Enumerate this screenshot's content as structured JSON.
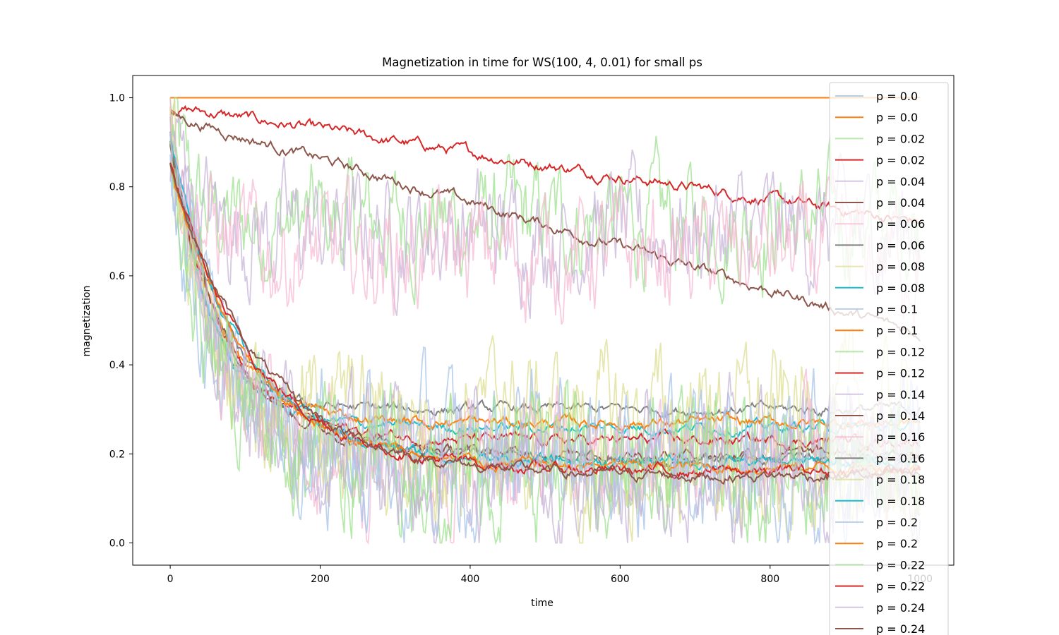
{
  "chart_data": {
    "type": "line",
    "title": "Magnetization in time for WS(100, 4, 0.01) for small ps",
    "xlabel": "time",
    "ylabel": "magnetization",
    "xlim": [
      -50,
      1045
    ],
    "ylim": [
      -0.05,
      1.05
    ],
    "xticks": [
      0,
      200,
      400,
      600,
      800,
      1000
    ],
    "yticks": [
      0.0,
      0.2,
      0.4,
      0.6,
      0.8,
      1.0
    ],
    "xtick_labels": [
      "0",
      "200",
      "400",
      "600",
      "800",
      "1000"
    ],
    "ytick_labels": [
      "0.0",
      "0.2",
      "0.4",
      "0.6",
      "0.8",
      "1.0"
    ],
    "legend_position": "upper-right (overflowing bottom)",
    "series": [
      {
        "name": "p = 0.0",
        "color": "#aec7e8",
        "alpha": 0.9,
        "kind": "single",
        "approx": {
          "start": 1.0,
          "end": 1.0
        }
      },
      {
        "name": "p = 0.0",
        "color": "#ff7f0e",
        "alpha": 1.0,
        "kind": "mean",
        "approx": {
          "start": 1.0,
          "end": 1.0
        }
      },
      {
        "name": "p = 0.02",
        "color": "#98df8a",
        "alpha": 0.7,
        "kind": "single",
        "approx": {
          "start": 1.0,
          "end": 0.72
        }
      },
      {
        "name": "p = 0.02",
        "color": "#d62728",
        "alpha": 1.0,
        "kind": "mean",
        "approx": {
          "start": 0.98,
          "end": 0.72
        }
      },
      {
        "name": "p = 0.04",
        "color": "#c5b0d5",
        "alpha": 0.7,
        "kind": "single",
        "approx": {
          "start": 0.97,
          "end": 0.7
        }
      },
      {
        "name": "p = 0.04",
        "color": "#8c564b",
        "alpha": 1.0,
        "kind": "mean",
        "approx": {
          "start": 0.96,
          "end": 0.47
        }
      },
      {
        "name": "p = 0.06",
        "color": "#f7b6d2",
        "alpha": 0.7,
        "kind": "single",
        "approx": {
          "start": 0.95,
          "end": 0.65
        }
      },
      {
        "name": "p = 0.06",
        "color": "#7f7f7f",
        "alpha": 1.0,
        "kind": "mean",
        "approx": {
          "start": 0.93,
          "end": 0.3
        }
      },
      {
        "name": "p = 0.08",
        "color": "#dbdb8d",
        "alpha": 0.7,
        "kind": "single",
        "approx": {
          "start": 0.93,
          "end": 0.3
        }
      },
      {
        "name": "p = 0.08",
        "color": "#17becf",
        "alpha": 1.0,
        "kind": "mean",
        "approx": {
          "start": 0.92,
          "end": 0.26
        }
      },
      {
        "name": "p = 0.1",
        "color": "#aec7e8",
        "alpha": 0.8,
        "kind": "single",
        "approx": {
          "start": 0.9,
          "end": 0.25
        }
      },
      {
        "name": "p = 0.1",
        "color": "#ff7f0e",
        "alpha": 1.0,
        "kind": "mean",
        "approx": {
          "start": 0.9,
          "end": 0.27
        }
      },
      {
        "name": "p = 0.12",
        "color": "#98df8a",
        "alpha": 0.7,
        "kind": "single",
        "approx": {
          "start": 0.9,
          "end": 0.2
        }
      },
      {
        "name": "p = 0.12",
        "color": "#d62728",
        "alpha": 1.0,
        "kind": "mean",
        "approx": {
          "start": 0.9,
          "end": 0.23
        }
      },
      {
        "name": "p = 0.14",
        "color": "#c5b0d5",
        "alpha": 0.7,
        "kind": "single",
        "approx": {
          "start": 0.9,
          "end": 0.2
        }
      },
      {
        "name": "p = 0.14",
        "color": "#8c564b",
        "alpha": 1.0,
        "kind": "mean",
        "approx": {
          "start": 0.9,
          "end": 0.2
        }
      },
      {
        "name": "p = 0.16",
        "color": "#f7b6d2",
        "alpha": 0.7,
        "kind": "single",
        "approx": {
          "start": 0.9,
          "end": 0.18
        }
      },
      {
        "name": "p = 0.16",
        "color": "#7f7f7f",
        "alpha": 1.0,
        "kind": "mean",
        "approx": {
          "start": 0.9,
          "end": 0.19
        }
      },
      {
        "name": "p = 0.18",
        "color": "#dbdb8d",
        "alpha": 0.7,
        "kind": "single",
        "approx": {
          "start": 0.9,
          "end": 0.17
        }
      },
      {
        "name": "p = 0.18",
        "color": "#17becf",
        "alpha": 1.0,
        "kind": "mean",
        "approx": {
          "start": 0.9,
          "end": 0.18
        }
      },
      {
        "name": "p = 0.2",
        "color": "#aec7e8",
        "alpha": 0.8,
        "kind": "single",
        "approx": {
          "start": 0.9,
          "end": 0.15
        }
      },
      {
        "name": "p = 0.2",
        "color": "#ff7f0e",
        "alpha": 1.0,
        "kind": "mean",
        "approx": {
          "start": 0.85,
          "end": 0.17
        }
      },
      {
        "name": "p = 0.22",
        "color": "#98df8a",
        "alpha": 0.7,
        "kind": "single",
        "approx": {
          "start": 0.9,
          "end": 0.15
        }
      },
      {
        "name": "p = 0.22",
        "color": "#d62728",
        "alpha": 1.0,
        "kind": "mean",
        "approx": {
          "start": 0.85,
          "end": 0.16
        }
      },
      {
        "name": "p = 0.24",
        "color": "#c5b0d5",
        "alpha": 0.7,
        "kind": "single",
        "approx": {
          "start": 0.9,
          "end": 0.14
        }
      },
      {
        "name": "p = 0.24",
        "color": "#8c564b",
        "alpha": 1.0,
        "kind": "mean",
        "approx": {
          "start": 0.85,
          "end": 0.15
        }
      }
    ]
  }
}
